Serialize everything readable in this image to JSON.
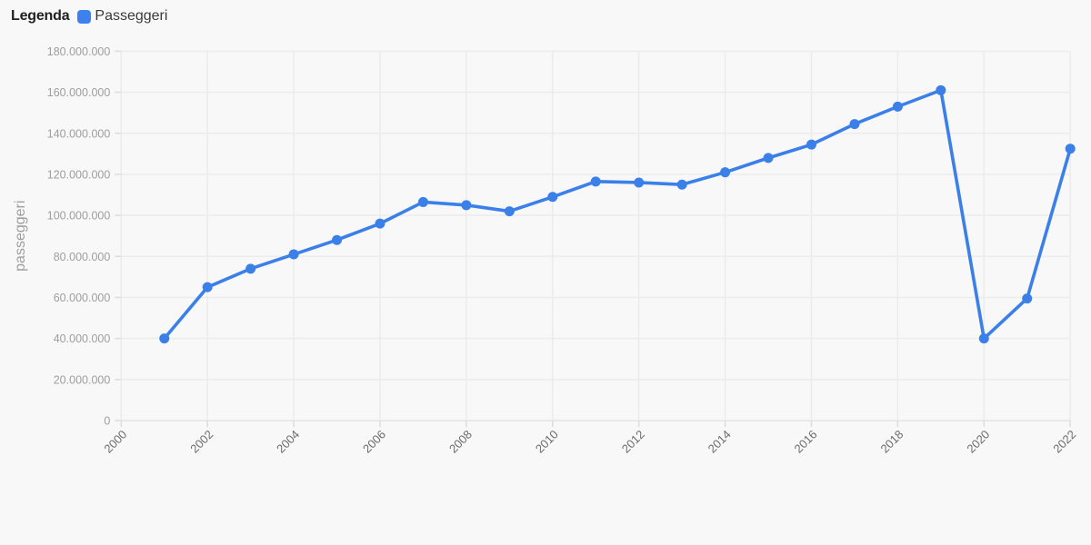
{
  "legend": {
    "title": "Legenda",
    "series_label": "Passeggeri"
  },
  "style": {
    "background": "#f8f8f8",
    "accent": "#3b80e8",
    "swatch_color": "#3b82ee",
    "grid_color": "#ececec",
    "axis_color": "#e3e3e3",
    "tick_color": "#dcdcdc",
    "ytick_text_color": "#9e9e9e",
    "xtick_text_color": "#6b6b6b",
    "ytitle_color": "#9e9e9e"
  },
  "chart_data": {
    "type": "line",
    "title": "",
    "xlabel": "",
    "ylabel": "passeggeri",
    "x": [
      2001,
      2002,
      2003,
      2004,
      2005,
      2006,
      2007,
      2008,
      2009,
      2010,
      2011,
      2012,
      2013,
      2014,
      2015,
      2016,
      2017,
      2018,
      2019,
      2020,
      2021,
      2022
    ],
    "series": [
      {
        "name": "Passeggeri",
        "color": "#3b80e8",
        "values": [
          40000000,
          65000000,
          74000000,
          81000000,
          88000000,
          96000000,
          106500000,
          105000000,
          102000000,
          109000000,
          116500000,
          116000000,
          115000000,
          121000000,
          128000000,
          134500000,
          144500000,
          153000000,
          161000000,
          40000000,
          59500000,
          132500000
        ]
      }
    ],
    "xticks": [
      2000,
      2002,
      2004,
      2006,
      2008,
      2010,
      2012,
      2014,
      2016,
      2018,
      2020,
      2022
    ],
    "yticks": [
      0,
      20000000,
      40000000,
      60000000,
      80000000,
      100000000,
      120000000,
      140000000,
      160000000,
      180000000
    ],
    "ytick_labels": [
      "0",
      "20.000.000",
      "40.000.000",
      "60.000.000",
      "80.000.000",
      "100.000.000",
      "120.000.000",
      "140.000.000",
      "160.000.000",
      "180.000.000"
    ],
    "xlim": [
      2000,
      2022
    ],
    "ylim": [
      0,
      180000000
    ],
    "grid": true,
    "legend_position": "top-left"
  }
}
